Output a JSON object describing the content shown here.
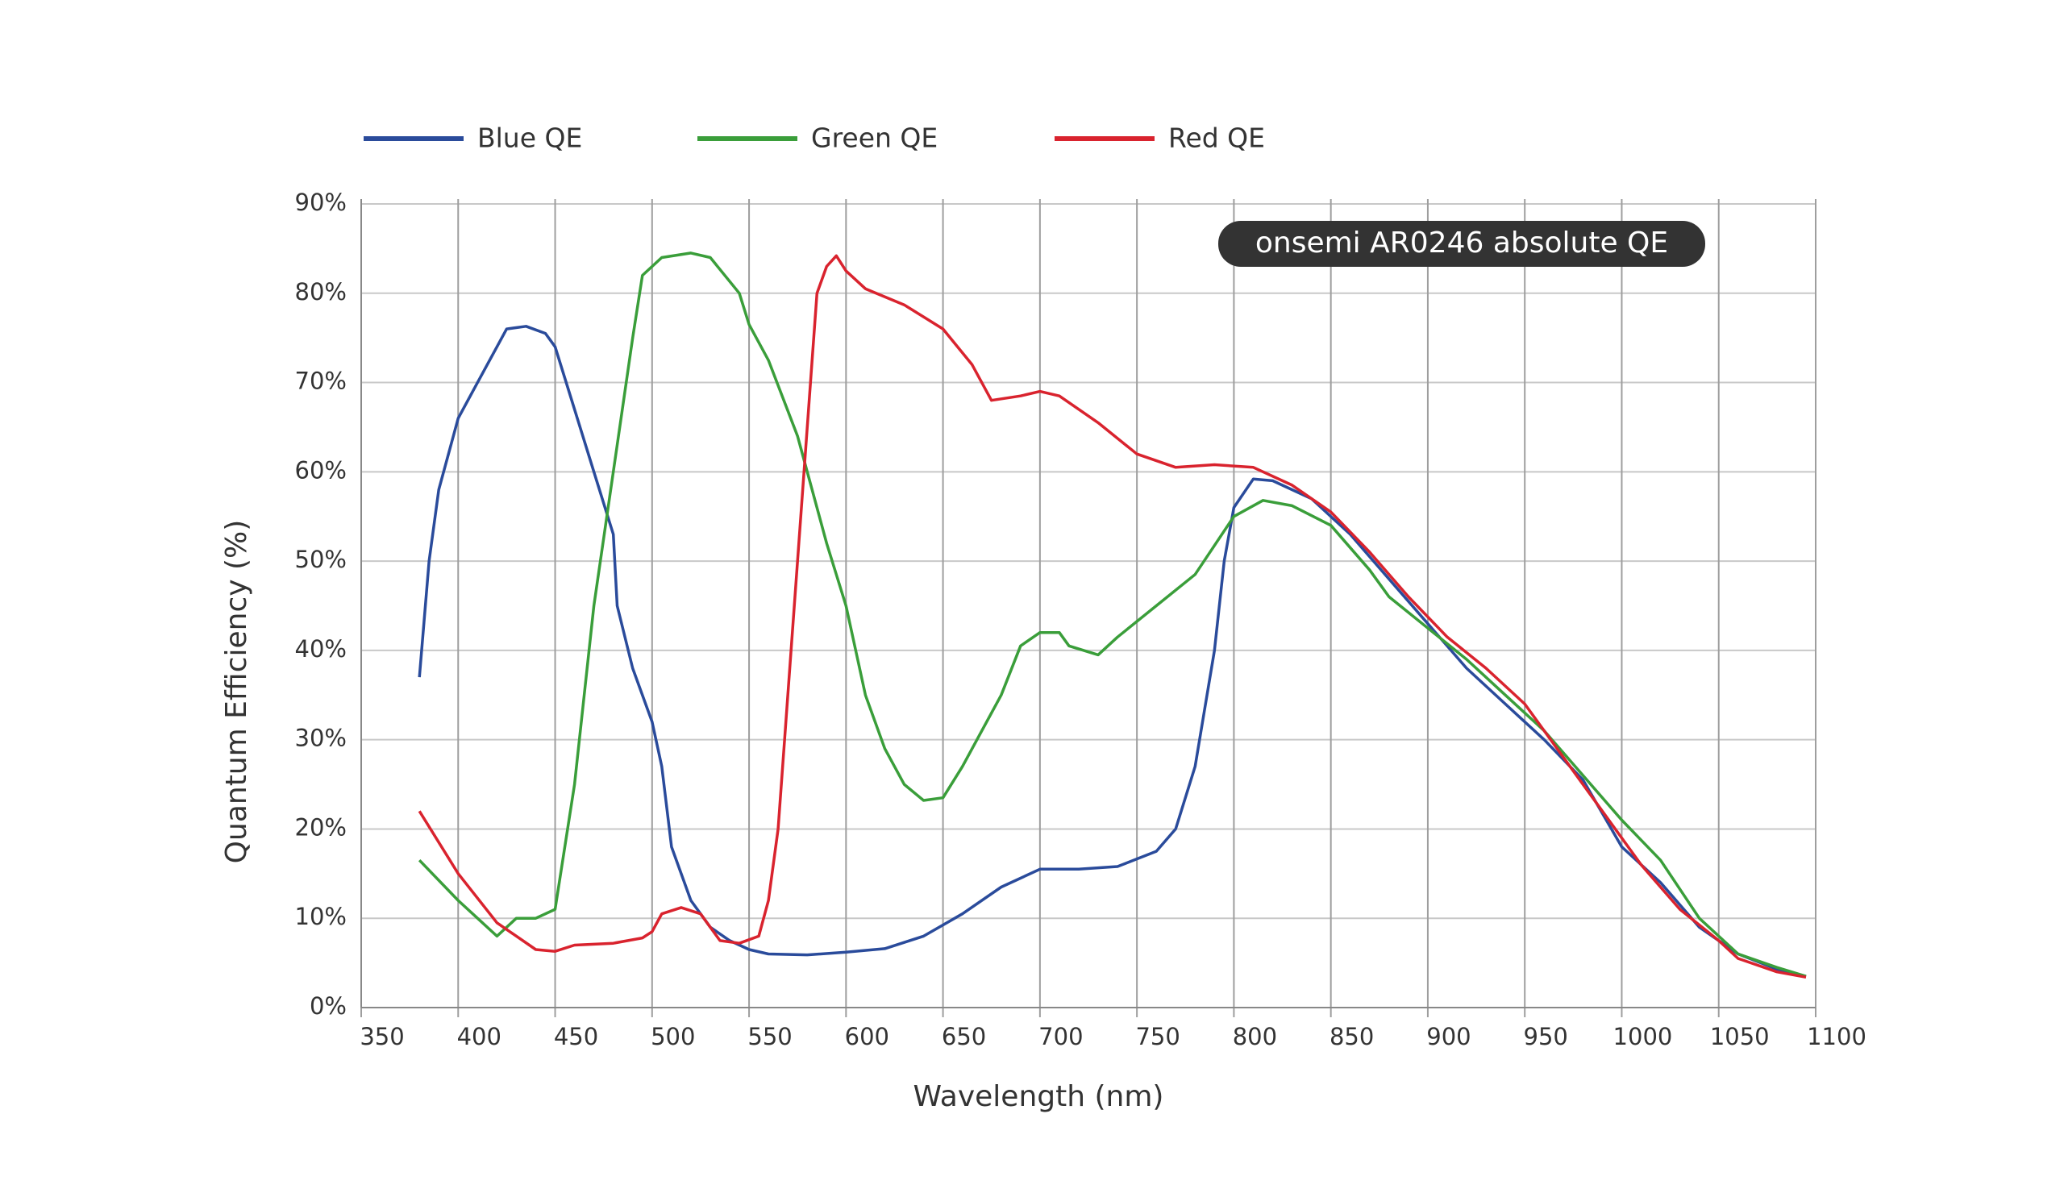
{
  "chart_data": {
    "type": "line",
    "xlabel": "Wavelength (nm)",
    "ylabel": "Quantum Efficiency (%)",
    "annotation": "onsemi AR0246 absolute QE",
    "legend": "top",
    "grid": true,
    "xlim": [
      350,
      1100
    ],
    "xticks": [
      350,
      400,
      450,
      500,
      550,
      600,
      650,
      700,
      750,
      800,
      850,
      900,
      950,
      1000,
      1050,
      1100
    ],
    "ylim": [
      0,
      90
    ],
    "yticks": [
      {
        "value": 0,
        "label": "0%"
      },
      {
        "value": 10,
        "label": "10%"
      },
      {
        "value": 20,
        "label": "20%"
      },
      {
        "value": 30,
        "label": "30%"
      },
      {
        "value": 40,
        "label": "40%"
      },
      {
        "value": 50,
        "label": "50%"
      },
      {
        "value": 60,
        "label": "60%"
      },
      {
        "value": 70,
        "label": "70%"
      },
      {
        "value": 80,
        "label": "80%"
      },
      {
        "value": 90,
        "label": "90%"
      }
    ],
    "series": [
      {
        "name": "Blue QE",
        "color": "#2a4b9b",
        "x": [
          380,
          385,
          390,
          400,
          410,
          420,
          425,
          435,
          445,
          450,
          460,
          470,
          480,
          482,
          490,
          500,
          505,
          510,
          520,
          530,
          540,
          550,
          560,
          580,
          600,
          620,
          640,
          660,
          680,
          700,
          720,
          740,
          760,
          770,
          780,
          790,
          795,
          800,
          810,
          820,
          840,
          860,
          880,
          900,
          920,
          940,
          960,
          980,
          1000,
          1020,
          1040,
          1060,
          1080,
          1095
        ],
        "values": [
          37,
          50,
          58,
          66,
          70,
          74,
          76,
          76.3,
          75.5,
          74,
          67,
          60,
          53,
          45,
          38,
          32,
          27,
          18,
          12,
          9,
          7.5,
          6.5,
          6,
          5.9,
          6.2,
          6.6,
          8,
          10.5,
          13.5,
          15.5,
          15.5,
          15.8,
          17.5,
          20,
          27,
          40,
          50,
          56,
          59.2,
          59,
          57,
          53,
          48,
          43,
          38,
          34,
          30,
          25.5,
          18,
          14,
          9,
          6,
          4.3,
          3.5
        ]
      },
      {
        "name": "Green QE",
        "color": "#3a9e3a",
        "x": [
          380,
          400,
          410,
          420,
          430,
          440,
          450,
          460,
          470,
          480,
          490,
          495,
          505,
          520,
          530,
          545,
          550,
          560,
          575,
          590,
          600,
          610,
          620,
          630,
          640,
          650,
          660,
          680,
          690,
          700,
          710,
          715,
          730,
          740,
          760,
          780,
          800,
          815,
          830,
          850,
          870,
          880,
          900,
          920,
          940,
          960,
          980,
          1000,
          1020,
          1040,
          1060,
          1080,
          1095
        ],
        "values": [
          16.5,
          12,
          10,
          8,
          10,
          10,
          11,
          25,
          45,
          60,
          75,
          82,
          84,
          84.5,
          84,
          80,
          76.5,
          72.5,
          64,
          52,
          45,
          35,
          29,
          25,
          23.2,
          23.5,
          27,
          35,
          40.5,
          42,
          42,
          40.5,
          39.5,
          41.5,
          45,
          48.5,
          55,
          56.8,
          56.2,
          54,
          49,
          46,
          42.5,
          39,
          35,
          31,
          26,
          21,
          16.5,
          10,
          6,
          4.5,
          3.5
        ]
      },
      {
        "name": "Red QE",
        "color": "#d9232e",
        "x": [
          380,
          400,
          420,
          440,
          450,
          460,
          480,
          495,
          500,
          505,
          515,
          525,
          535,
          545,
          555,
          560,
          565,
          575,
          585,
          590,
          595,
          600,
          610,
          630,
          650,
          665,
          675,
          690,
          700,
          710,
          730,
          750,
          770,
          790,
          810,
          830,
          850,
          870,
          890,
          910,
          930,
          950,
          970,
          990,
          1010,
          1030,
          1050,
          1060,
          1080,
          1095
        ],
        "values": [
          22,
          15,
          9.5,
          6.5,
          6.3,
          7,
          7.2,
          7.8,
          8.5,
          10.5,
          11.2,
          10.5,
          7.5,
          7.2,
          8,
          12,
          20,
          50,
          80,
          83,
          84.2,
          82.5,
          80.5,
          78.7,
          76,
          72,
          68,
          68.5,
          69,
          68.5,
          65.5,
          62,
          60.5,
          60.8,
          60.5,
          58.5,
          55.5,
          51,
          46,
          41.5,
          38,
          34,
          28,
          22,
          16,
          11,
          7.5,
          5.5,
          4,
          3.4
        ]
      }
    ]
  }
}
